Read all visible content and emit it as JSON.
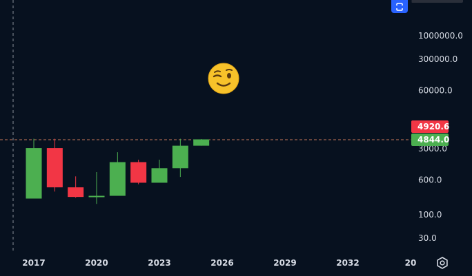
{
  "chart_data": {
    "type": "candlestick",
    "scale": "log",
    "grid": false,
    "x_tick_labels": [
      "2017",
      "2020",
      "2023",
      "2026",
      "2029",
      "2032",
      "20"
    ],
    "y_tick_labels": [
      "1000000.0",
      "300000.0",
      "60000.0",
      "3000.0",
      "600.0",
      "100.0",
      "30.0"
    ],
    "y_ticks": [
      1000000,
      300000,
      60000,
      3000,
      600,
      100,
      30
    ],
    "price_tags": [
      {
        "label": "4920.6",
        "value": 4920.6,
        "color": "#f23645"
      },
      {
        "label": "4844.0",
        "value": 4844.0,
        "color": "#4caf50"
      }
    ],
    "candles": [
      {
        "year": 2017,
        "open": 230,
        "high": 5000,
        "low": 230,
        "close": 3100,
        "direction": "up"
      },
      {
        "year": 2018,
        "open": 3100,
        "high": 5000,
        "low": 330,
        "close": 410,
        "direction": "down"
      },
      {
        "year": 2019,
        "open": 410,
        "high": 720,
        "low": 240,
        "close": 250,
        "direction": "down"
      },
      {
        "year": 2020,
        "open": 250,
        "high": 900,
        "low": 175,
        "close": 265,
        "direction": "up"
      },
      {
        "year": 2021,
        "open": 265,
        "high": 2500,
        "low": 265,
        "close": 1500,
        "direction": "up"
      },
      {
        "year": 2022,
        "open": 1500,
        "high": 1700,
        "low": 480,
        "close": 520,
        "direction": "down"
      },
      {
        "year": 2023,
        "open": 520,
        "high": 1700,
        "low": 520,
        "close": 1100,
        "direction": "up"
      },
      {
        "year": 2024,
        "open": 1100,
        "high": 5000,
        "low": 700,
        "close": 3500,
        "direction": "up"
      },
      {
        "year": 2025,
        "open": 3500,
        "high": 4920.6,
        "low": 3500,
        "close": 4844,
        "direction": "up"
      }
    ],
    "colors": {
      "up": "#4caf50",
      "down": "#f23645",
      "background": "#07111f"
    }
  },
  "icons": {
    "sync": "sync-icon",
    "emoji": "winking-face-icon",
    "settings": "gear-icon"
  }
}
